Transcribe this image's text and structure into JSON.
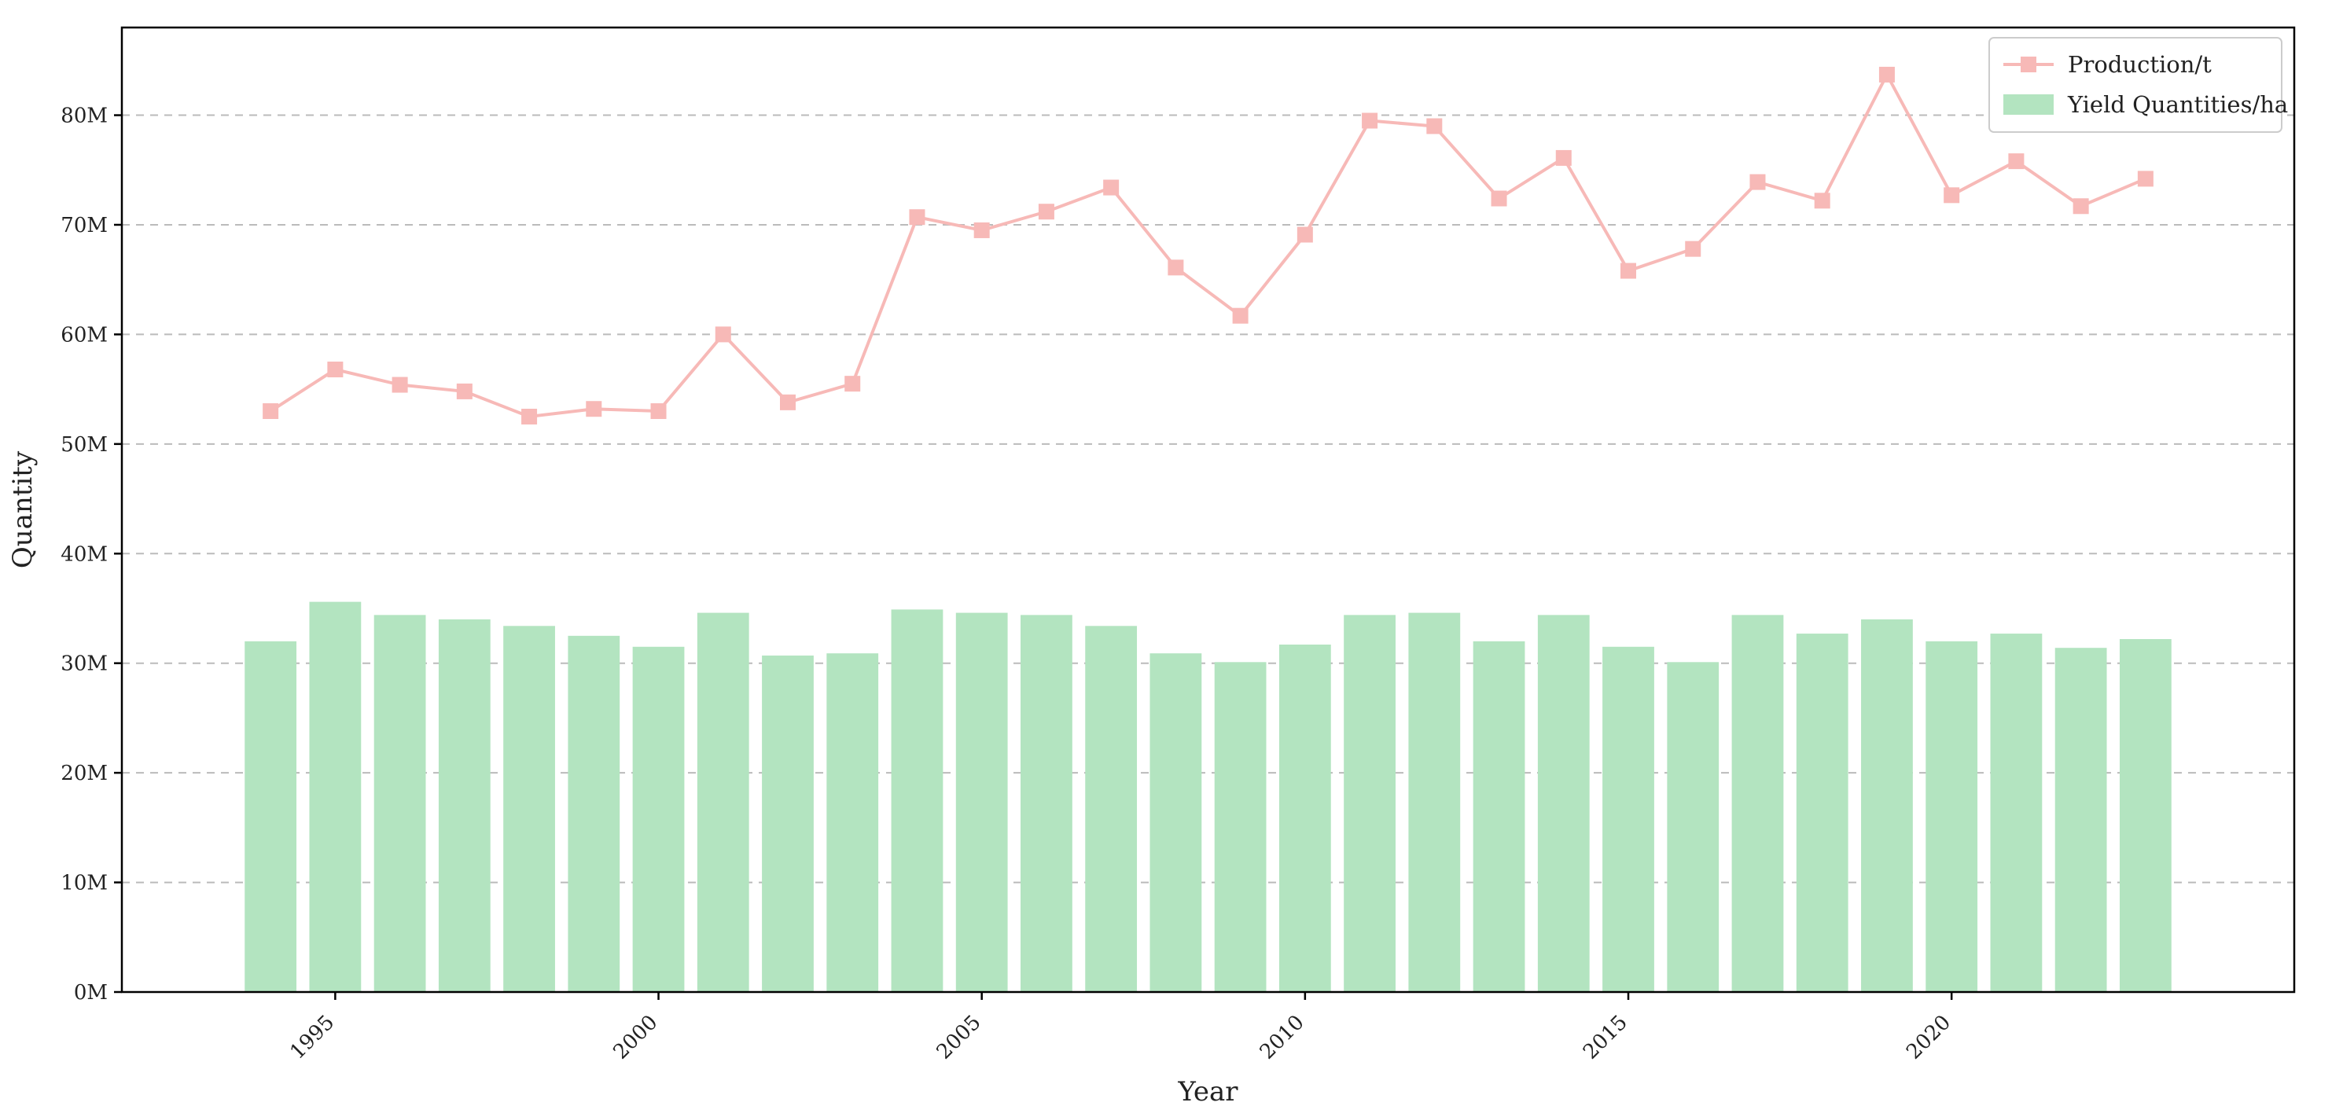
{
  "chart_data": {
    "type": "bar",
    "x": [
      1994,
      1995,
      1996,
      1997,
      1998,
      1999,
      2000,
      2001,
      2002,
      2003,
      2004,
      2005,
      2006,
      2007,
      2008,
      2009,
      2010,
      2011,
      2012,
      2013,
      2014,
      2015,
      2016,
      2017,
      2018,
      2019,
      2020,
      2021,
      2022,
      2023
    ],
    "series": [
      {
        "name": "Production/t",
        "type": "line",
        "marker": "square",
        "color": "#f7b9b7",
        "values": [
          53.0,
          56.8,
          55.4,
          54.8,
          52.5,
          53.2,
          53.0,
          60.0,
          53.8,
          55.5,
          70.7,
          69.5,
          71.2,
          73.4,
          66.1,
          61.7,
          69.1,
          79.5,
          79.0,
          72.4,
          76.1,
          65.8,
          67.8,
          73.9,
          72.2,
          83.7,
          72.7,
          75.8,
          71.7,
          74.2
        ]
      },
      {
        "name": "Yield Quantities/ha",
        "type": "bar",
        "color": "#b3e4c0",
        "values": [
          32.0,
          35.6,
          34.4,
          34.0,
          33.4,
          32.5,
          31.5,
          34.6,
          30.7,
          30.9,
          34.9,
          34.6,
          34.4,
          33.4,
          30.9,
          30.1,
          31.7,
          34.4,
          34.6,
          32.0,
          34.4,
          31.5,
          30.1,
          34.4,
          32.7,
          34.0,
          32.0,
          32.7,
          31.4,
          32.2
        ]
      }
    ],
    "xlabel": "Year",
    "ylabel": "Quantity",
    "xticks": [
      1995,
      2000,
      2005,
      2010,
      2015,
      2020
    ],
    "xtick_labels": [
      "1995",
      "2000",
      "2005",
      "2010",
      "2015",
      "2020"
    ],
    "xlim": [
      1991.7,
      2025.3
    ],
    "yticks": [
      0,
      10,
      20,
      30,
      40,
      50,
      60,
      70,
      80
    ],
    "ytick_labels": [
      "0M",
      "10M",
      "20M",
      "30M",
      "40M",
      "50M",
      "60M",
      "70M",
      "80M"
    ],
    "ylim": [
      0,
      88
    ],
    "grid": "y-dashed",
    "legend": "top-right"
  }
}
